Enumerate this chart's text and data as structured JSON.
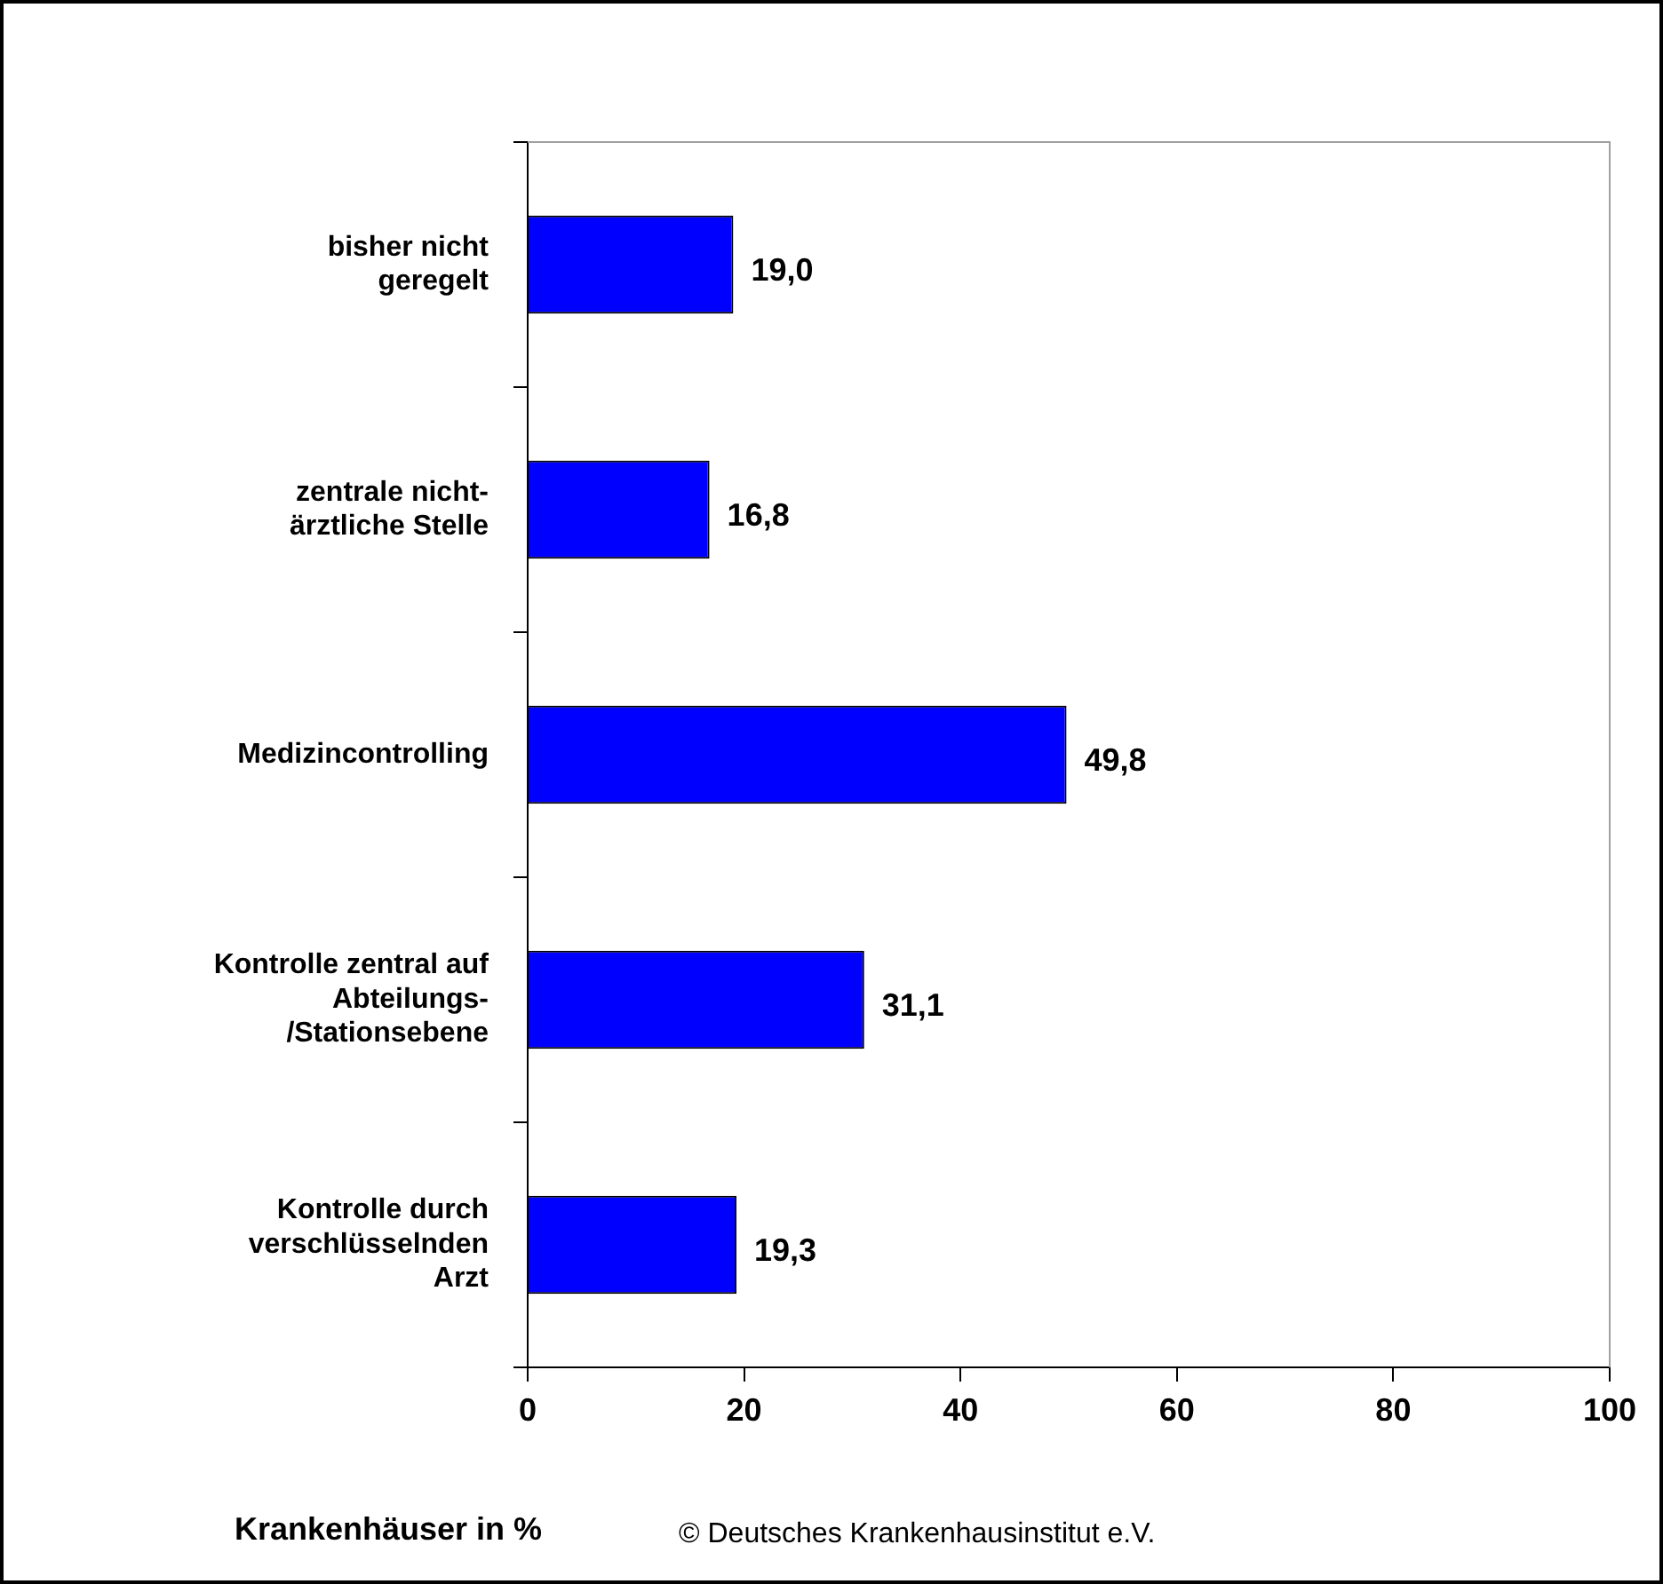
{
  "chart_data": {
    "type": "bar",
    "orientation": "horizontal",
    "xlabel": "Krankenhäuser in %",
    "categories": [
      "bisher nicht\ngeregelt",
      "zentrale nicht-\närztliche Stelle",
      "Medizincontrolling",
      "Kontrolle zentral auf\nAbteilungs-\n/Stationsebene",
      "Kontrolle durch\nverschlüsselnden\nArzt"
    ],
    "values": [
      19.0,
      16.8,
      49.8,
      31.1,
      19.3
    ],
    "color": "#0000ff",
    "data_labels": true,
    "value_labels": [
      "19,0",
      "16,8",
      "49,8",
      "31,1",
      "19,3"
    ],
    "xlim": [
      0,
      100
    ],
    "xticks": [
      0,
      20,
      40,
      60,
      80,
      100
    ],
    "grid": false,
    "legend": false,
    "annotations": [
      "© Deutsches Krankenhausinstitut e.V."
    ]
  }
}
